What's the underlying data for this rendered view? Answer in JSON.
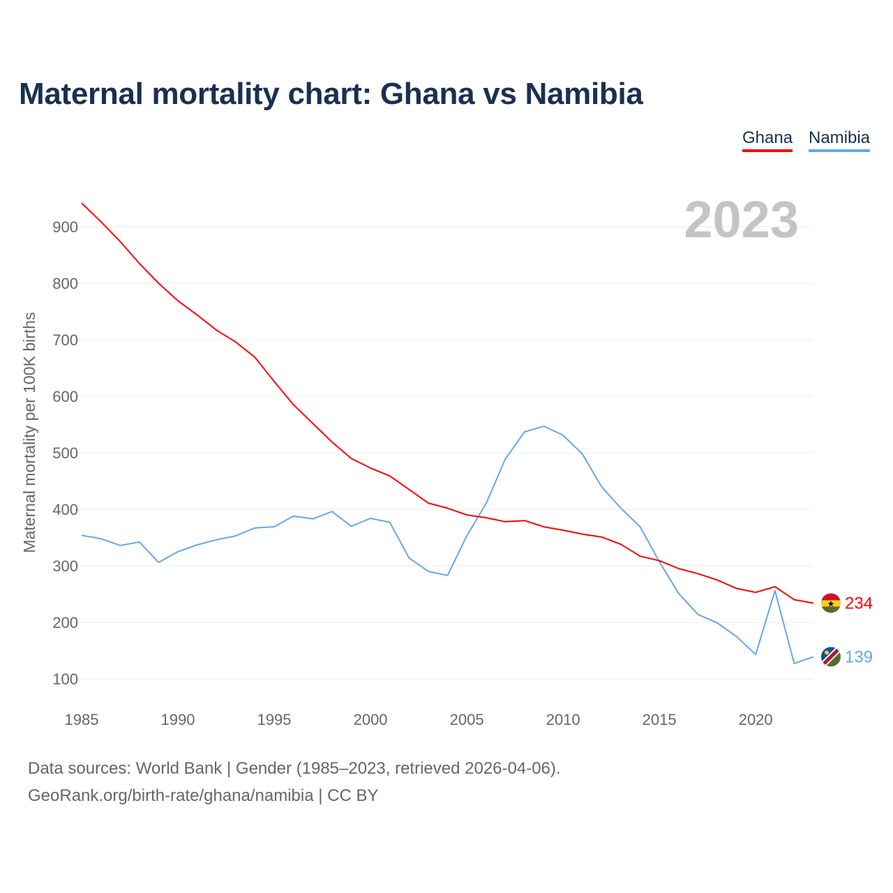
{
  "chart_data": {
    "type": "line",
    "title": "Maternal mortality chart: Ghana vs Namibia",
    "xlabel": "",
    "ylabel": "Maternal mortality per 100K births",
    "year_label": "2023",
    "xlim": [
      1985,
      2023
    ],
    "ylim": [
      100,
      900
    ],
    "grid": true,
    "legend_position": "top-right",
    "x_ticks": [
      "1985",
      "1990",
      "1995",
      "2000",
      "2005",
      "2010",
      "2015",
      "2020"
    ],
    "y_ticks": [
      "100",
      "200",
      "300",
      "400",
      "500",
      "600",
      "700",
      "800",
      "900"
    ],
    "x": [
      1985,
      1986,
      1987,
      1988,
      1989,
      1990,
      1991,
      1992,
      1993,
      1994,
      1995,
      1996,
      1997,
      1998,
      1999,
      2000,
      2001,
      2002,
      2003,
      2004,
      2005,
      2006,
      2007,
      2008,
      2009,
      2010,
      2011,
      2012,
      2013,
      2014,
      2015,
      2016,
      2017,
      2018,
      2019,
      2020,
      2021,
      2022,
      2023
    ],
    "series": [
      {
        "name": "Ghana",
        "color": "#ff0000",
        "end_label": "234",
        "values": [
          942,
          909,
          874,
          835,
          800,
          769,
          744,
          717,
          696,
          669,
          626,
          585,
          552,
          519,
          490,
          473,
          459,
          435,
          411,
          402,
          390,
          385,
          378,
          380,
          369,
          363,
          356,
          351,
          338,
          317,
          309,
          295,
          286,
          275,
          260,
          253,
          263,
          240,
          234
        ]
      },
      {
        "name": "Namibia",
        "color": "#64a8ea",
        "end_label": "139",
        "values": [
          354,
          348,
          336,
          342,
          306,
          325,
          337,
          346,
          353,
          367,
          369,
          388,
          383,
          396,
          370,
          384,
          377,
          314,
          290,
          283,
          353,
          410,
          489,
          537,
          547,
          531,
          498,
          440,
          402,
          369,
          307,
          251,
          214,
          199,
          175,
          143,
          256,
          127,
          139
        ]
      }
    ]
  },
  "footer": {
    "sources": "Data sources: World Bank | Gender (1985–2023, retrieved 2026-04-06).",
    "credit": "GeoRank.org/birth-rate/ghana/namibia | CC BY"
  }
}
